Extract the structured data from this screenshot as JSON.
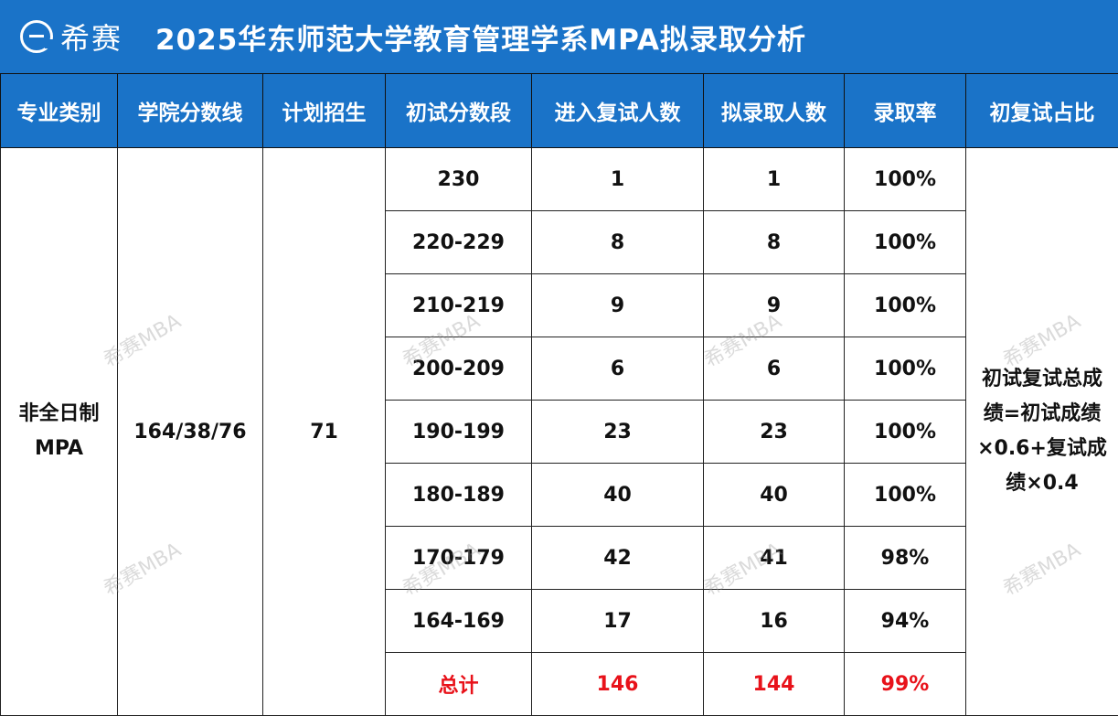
{
  "header": {
    "logo_text": "希赛",
    "title": "2025华东师范大学教育管理学系MPA拟录取分析"
  },
  "table": {
    "columns": [
      "专业类别",
      "学院分数线",
      "计划招生",
      "初试分数段",
      "进入复试人数",
      "拟录取人数",
      "录取率",
      "初复试占比"
    ],
    "major_line1": "非全日制",
    "major_line2": "MPA",
    "cutoff": "164/38/76",
    "plan": "71",
    "rows": [
      {
        "range": "230",
        "retest": "1",
        "admitted": "1",
        "rate": "100%"
      },
      {
        "range": "220-229",
        "retest": "8",
        "admitted": "8",
        "rate": "100%"
      },
      {
        "range": "210-219",
        "retest": "9",
        "admitted": "9",
        "rate": "100%"
      },
      {
        "range": "200-209",
        "retest": "6",
        "admitted": "6",
        "rate": "100%"
      },
      {
        "range": "190-199",
        "retest": "23",
        "admitted": "23",
        "rate": "100%"
      },
      {
        "range": "180-189",
        "retest": "40",
        "admitted": "40",
        "rate": "100%"
      },
      {
        "range": "170-179",
        "retest": "42",
        "admitted": "41",
        "rate": "98%"
      },
      {
        "range": "164-169",
        "retest": "17",
        "admitted": "16",
        "rate": "94%"
      }
    ],
    "total": {
      "label": "总计",
      "retest": "146",
      "admitted": "144",
      "rate": "99%"
    },
    "ratio_line1": "初试复试总成",
    "ratio_line2": "绩=初试成绩",
    "ratio_line3": "×0.6+复试成",
    "ratio_line4": "绩×0.4"
  },
  "watermark": "希赛MBA",
  "colors": {
    "header_blue": "#1a73c8",
    "total_red": "#e8121a"
  }
}
